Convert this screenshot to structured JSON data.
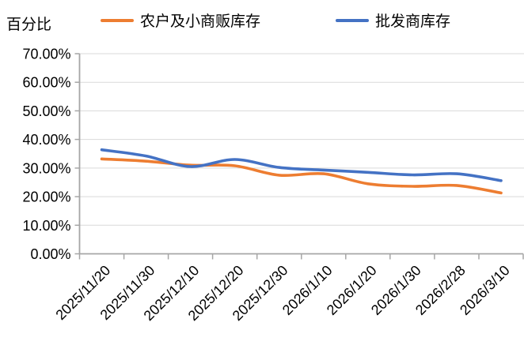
{
  "chart": {
    "y_axis_title": "百分比"
  },
  "chart_data": {
    "type": "line",
    "title": "",
    "ylabel": "百分比",
    "xlabel": "",
    "categories": [
      "2025/11/20",
      "2025/11/30",
      "2025/12/10",
      "2025/12/20",
      "2025/12/30",
      "2026/1/10",
      "2026/1/20",
      "2026/1/30",
      "2026/2/28",
      "2026/3/10"
    ],
    "series": [
      {
        "name": "农户及小商贩库存",
        "color": "#ED7D31",
        "values": [
          33.2,
          32.4,
          31.0,
          30.8,
          27.5,
          28.0,
          24.5,
          23.6,
          23.9,
          21.3
        ]
      },
      {
        "name": "批发商库存",
        "color": "#4472C4",
        "values": [
          36.4,
          34.2,
          30.5,
          33.0,
          30.2,
          29.3,
          28.5,
          27.6,
          28.0,
          25.6
        ]
      }
    ],
    "ylim": [
      0,
      70
    ],
    "ytick_step": 10,
    "ytick_labels": [
      "0.00%",
      "10.00%",
      "20.00%",
      "30.00%",
      "40.00%",
      "50.00%",
      "60.00%",
      "70.00%"
    ],
    "grid": true,
    "smooth": true,
    "legend_position": "top",
    "axis_color": "#A6A6A6",
    "grid_color": "#D9D9D9",
    "text_color": "#000000"
  }
}
